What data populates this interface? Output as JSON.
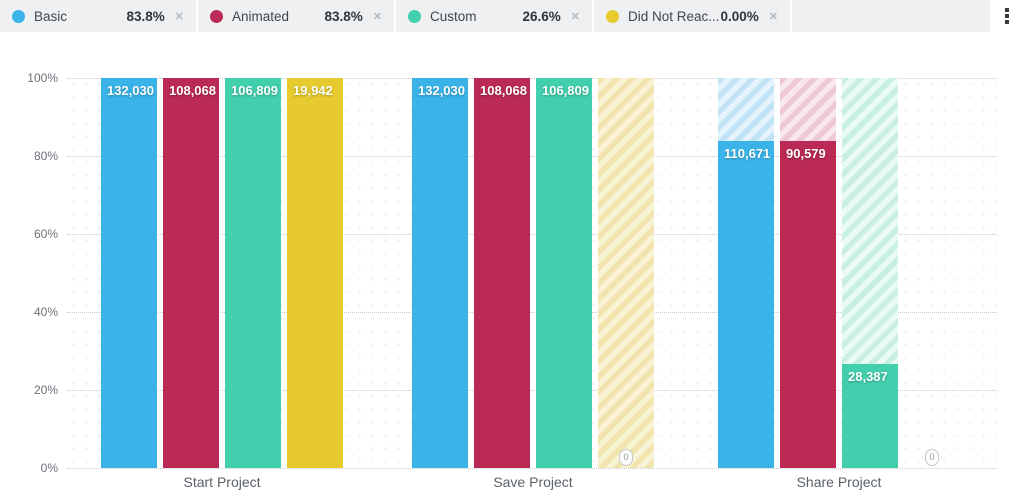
{
  "legend": {
    "items": [
      {
        "label": "Basic",
        "value": "83.8%",
        "color": "#3ab4e8"
      },
      {
        "label": "Animated",
        "value": "83.8%",
        "color": "#ba2a54"
      },
      {
        "label": "Custom",
        "value": "26.6%",
        "color": "#41cfad"
      },
      {
        "label": "Did Not Reac...",
        "value": "0.00%",
        "color": "#e6ca2e"
      }
    ],
    "remove_icon": "✕",
    "menu_icon": "kebab-vertical"
  },
  "chart_data": {
    "type": "bar",
    "title": "",
    "categories": [
      "Start Project",
      "Save Project",
      "Share Project"
    ],
    "y_ticks": [
      "100%",
      "80%",
      "60%",
      "40%",
      "20%",
      "0%"
    ],
    "ylim": [
      0,
      100
    ],
    "ylabel": "",
    "xlabel": "",
    "grid": "horizontal-dotted",
    "legend_position": "top",
    "series": [
      {
        "name": "Basic",
        "color": "#3ab4e8",
        "hatch_colors": [
          "#c0e3f6",
          "#e5f4fc"
        ],
        "points": [
          {
            "category": "Start Project",
            "value": 132030,
            "label": "132,030",
            "pct": 100,
            "hatch_above": false
          },
          {
            "category": "Save Project",
            "value": 132030,
            "label": "132,030",
            "pct": 100,
            "hatch_above": false
          },
          {
            "category": "Share Project",
            "value": 110671,
            "label": "110,671",
            "pct": 83.8,
            "hatch_above": true
          }
        ]
      },
      {
        "name": "Animated",
        "color": "#ba2a54",
        "hatch_colors": [
          "#eec9d5",
          "#f8e8ee"
        ],
        "points": [
          {
            "category": "Start Project",
            "value": 108068,
            "label": "108,068",
            "pct": 100,
            "hatch_above": false
          },
          {
            "category": "Save Project",
            "value": 108068,
            "label": "108,068",
            "pct": 100,
            "hatch_above": false
          },
          {
            "category": "Share Project",
            "value": 90579,
            "label": "90,579",
            "pct": 83.8,
            "hatch_above": true
          }
        ]
      },
      {
        "name": "Custom",
        "color": "#41cfad",
        "hatch_colors": [
          "#c9efe3",
          "#eafaf4"
        ],
        "points": [
          {
            "category": "Start Project",
            "value": 106809,
            "label": "106,809",
            "pct": 100,
            "hatch_above": false
          },
          {
            "category": "Save Project",
            "value": 106809,
            "label": "106,809",
            "pct": 100,
            "hatch_above": false
          },
          {
            "category": "Share Project",
            "value": 28387,
            "label": "28,387",
            "pct": 26.6,
            "hatch_above": true
          }
        ]
      },
      {
        "name": "Did Not Reac...",
        "color": "#e6ca2e",
        "hatch_colors": [
          "#f1e5ad",
          "#f9f3d6"
        ],
        "points": [
          {
            "category": "Start Project",
            "value": 19942,
            "label": "19,942",
            "pct": 100,
            "hatch_above": false
          },
          {
            "category": "Save Project",
            "value": 0,
            "pct": 0,
            "hatch_above": true,
            "badge": "0"
          },
          {
            "category": "Share Project",
            "value": 0,
            "pct": 0,
            "hatch_above": false,
            "badge": "0"
          }
        ]
      }
    ]
  }
}
